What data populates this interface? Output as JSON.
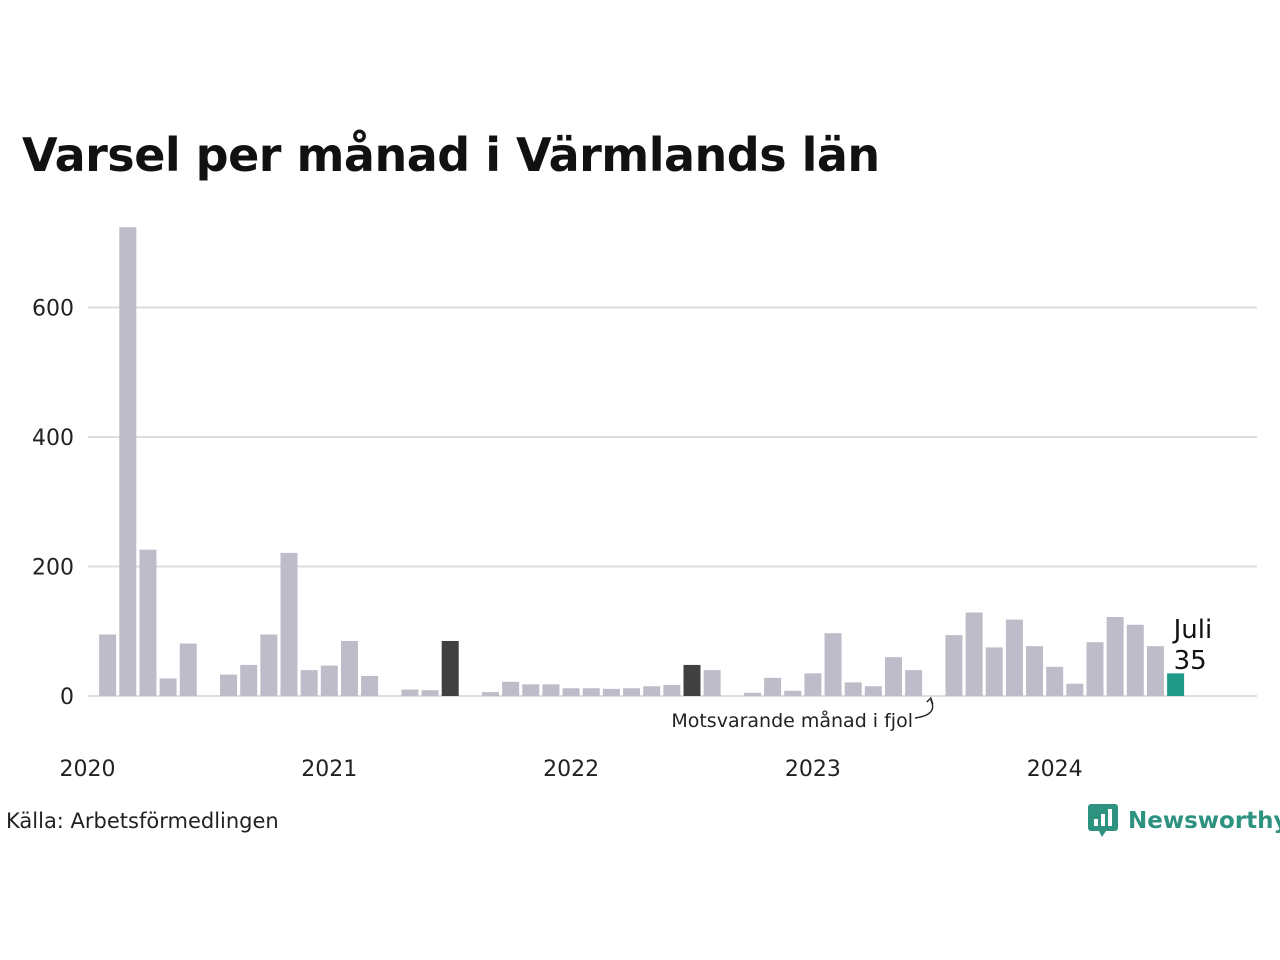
{
  "title": "Varsel per månad i Värmlands län",
  "source": "Källa: Arbetsförmedlingen",
  "brand": "Newsworthy",
  "brand_icon": "newsworthy-logo-icon",
  "colors": {
    "bar": "#bdbcc8",
    "comparison": "#404040",
    "current": "#1f9a88",
    "grid": "#dddddd",
    "brand": "#2e9280"
  },
  "chart_data": {
    "type": "bar",
    "title": "Varsel per månad i Värmlands län",
    "xlabel": "",
    "ylabel": "",
    "ylim": [
      0,
      725
    ],
    "yticks": [
      0,
      200,
      400,
      600
    ],
    "grid": true,
    "x_tick_labels": [
      "2020",
      "2021",
      "2022",
      "2023",
      "2024"
    ],
    "start": "2020-01",
    "categories": [
      "2020-01",
      "2020-02",
      "2020-03",
      "2020-04",
      "2020-05",
      "2020-06",
      "2020-07",
      "2020-08",
      "2020-09",
      "2020-10",
      "2020-11",
      "2020-12",
      "2021-01",
      "2021-02",
      "2021-03",
      "2021-04",
      "2021-05",
      "2021-06",
      "2021-07",
      "2021-08",
      "2021-09",
      "2021-10",
      "2021-11",
      "2021-12",
      "2022-01",
      "2022-02",
      "2022-03",
      "2022-04",
      "2022-05",
      "2022-06",
      "2022-07",
      "2022-08",
      "2022-09",
      "2022-10",
      "2022-11",
      "2022-12",
      "2023-01",
      "2023-02",
      "2023-03",
      "2023-04",
      "2023-05",
      "2023-06",
      "2023-07",
      "2023-08",
      "2023-09",
      "2023-10",
      "2023-11",
      "2023-12",
      "2024-01",
      "2024-02",
      "2024-03",
      "2024-04",
      "2024-05",
      "2024-06",
      "2024-07"
    ],
    "values": [
      0,
      95,
      724,
      226,
      27,
      81,
      0,
      33,
      48,
      95,
      221,
      40,
      47,
      85,
      31,
      0,
      10,
      9,
      85,
      0,
      6,
      22,
      18,
      18,
      12,
      12,
      11,
      12,
      15,
      17,
      48,
      40,
      0,
      5,
      28,
      8,
      35,
      97,
      21,
      15,
      60,
      40,
      0,
      94,
      129,
      75,
      118,
      77,
      45,
      19,
      83,
      122,
      110,
      77,
      35
    ],
    "highlight": {
      "index": 54,
      "label": "Juli",
      "value_label": "35"
    },
    "comparison_indices": [
      18,
      30,
      42
    ],
    "annotation": {
      "text": "Motsvarande månad i fjol",
      "target_index": 42
    }
  }
}
